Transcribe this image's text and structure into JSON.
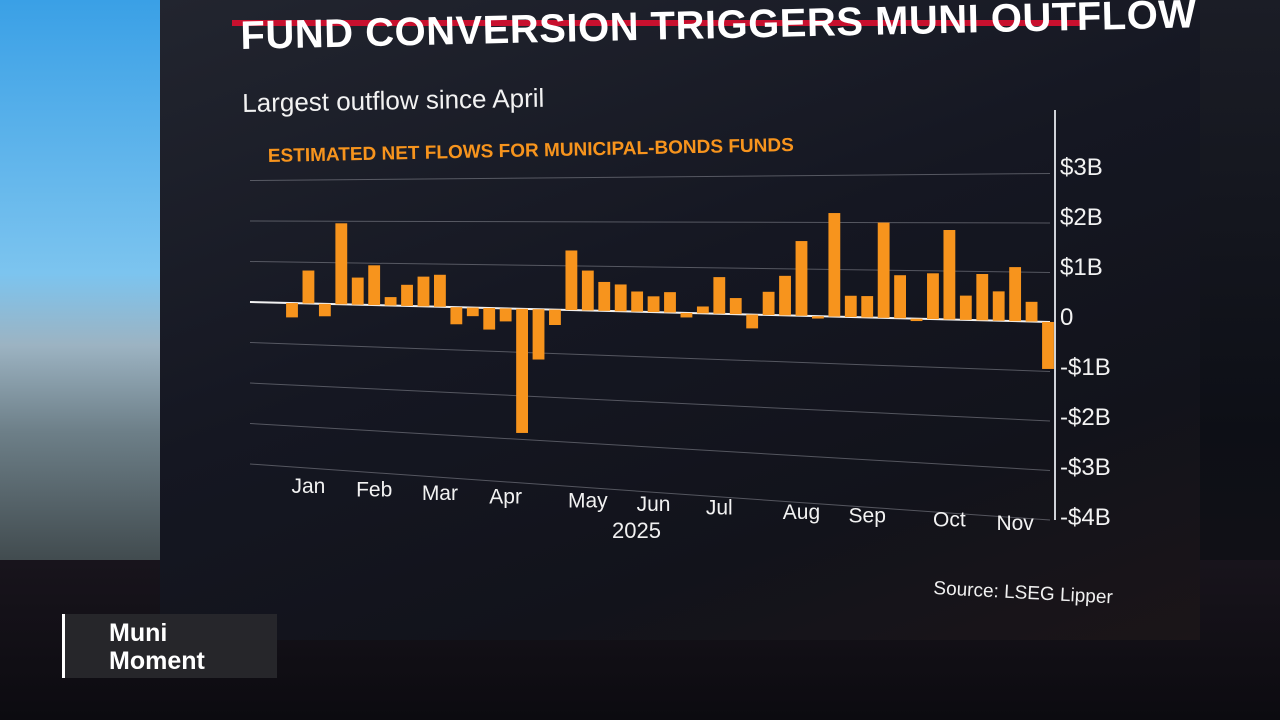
{
  "program": {
    "segment_label": "Muni\nMoment"
  },
  "graphic": {
    "title": "FUND CONVERSION TRIGGERS MUNI OUTFLOW",
    "subtitle": "Largest outflow since April",
    "source": "Source: LSEG Lipper"
  },
  "colors": {
    "bar": "#f7941d",
    "chart_title": "#f7941d",
    "title_rule": "#c8102e",
    "grid": "#8a8d96"
  },
  "chart_data": {
    "type": "bar",
    "title": "ESTIMATED NET FLOWS FOR MUNICIPAL-BONDS FUNDS",
    "xlabel": "2025",
    "ylabel": "",
    "ylim": [
      -4,
      3
    ],
    "y_ticks": [
      3,
      2,
      1,
      0,
      -1,
      -2,
      -3,
      -4
    ],
    "y_tick_labels": [
      "$3B",
      "$2B",
      "$1B",
      "0",
      "-$1B",
      "-$2B",
      "-$3B",
      "-$4B"
    ],
    "x_tick_labels": [
      {
        "label": "Jan",
        "week": 1
      },
      {
        "label": "Feb",
        "week": 5
      },
      {
        "label": "Mar",
        "week": 9
      },
      {
        "label": "Apr",
        "week": 13
      },
      {
        "label": "May",
        "week": 18
      },
      {
        "label": "Jun",
        "week": 22
      },
      {
        "label": "Jul",
        "week": 26
      },
      {
        "label": "Aug",
        "week": 31
      },
      {
        "label": "Sep",
        "week": 35
      },
      {
        "label": "Oct",
        "week": 40
      },
      {
        "label": "Nov",
        "week": 44
      }
    ],
    "grid": true,
    "y_axis_side": "right",
    "series": [
      {
        "values": [
          -0.35,
          0.8,
          -0.3,
          1.95,
          0.65,
          0.95,
          0.2,
          0.5,
          0.7,
          0.75,
          -0.4,
          -0.2,
          -0.5,
          -0.3,
          -2.85,
          -1.15,
          -0.35,
          1.35,
          0.9,
          0.65,
          0.6,
          0.45,
          0.35,
          0.45,
          -0.1,
          0.15,
          0.8,
          0.35,
          -0.3,
          0.5,
          0.85,
          1.6,
          -0.05,
          2.2,
          0.45,
          0.45,
          2.0,
          0.9,
          -0.05,
          0.95,
          1.85,
          0.5,
          0.95,
          0.6,
          1.1,
          0.4,
          -0.95
        ]
      }
    ]
  }
}
